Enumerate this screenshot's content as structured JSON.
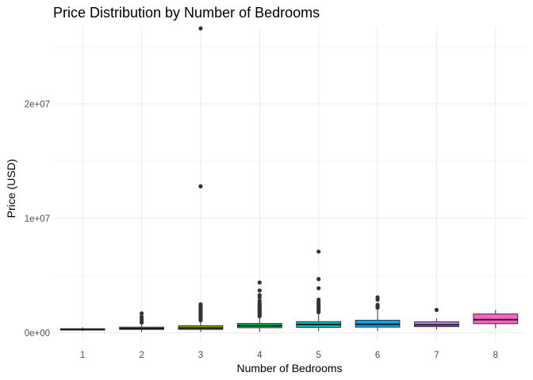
{
  "chart_data": {
    "type": "boxplot",
    "title": "Price Distribution by Number of Bedrooms",
    "xlabel": "Number of Bedrooms",
    "ylabel": "Price (USD)",
    "ylim": [
      -800000,
      26800000
    ],
    "y_ticks": [
      0,
      10000000,
      20000000
    ],
    "y_tick_labels": [
      "0e+00",
      "1e+07",
      "2e+07"
    ],
    "grid": true,
    "legend": "none",
    "categories": [
      "1",
      "2",
      "3",
      "4",
      "5",
      "6",
      "7",
      "8"
    ],
    "colors": {
      "1": "#F8766D",
      "2": "#CD9600",
      "3": "#7CAE00",
      "4": "#00BE67",
      "5": "#00BFC4",
      "6": "#00A9FF",
      "7": "#C77CFF",
      "8": "#FF61CC"
    },
    "boxes": [
      {
        "category": "1",
        "min": 150000,
        "q1": 250000,
        "median": 290000,
        "q3": 360000,
        "max": 470000,
        "outliers": []
      },
      {
        "category": "2",
        "min": 90000,
        "q1": 300000,
        "median": 380000,
        "q3": 500000,
        "max": 700000,
        "outliers": [
          900000,
          1000000,
          1200000,
          1400000,
          1700000
        ]
      },
      {
        "category": "3",
        "min": 80000,
        "q1": 300000,
        "median": 420000,
        "q3": 620000,
        "max": 1000000,
        "outliers": [
          1100000,
          1200000,
          1300000,
          1400000,
          1500000,
          1600000,
          1700000,
          1800000,
          1900000,
          2000000,
          2100000,
          2200000,
          2300000,
          2400000,
          2500000,
          12800000,
          26600000
        ]
      },
      {
        "category": "4",
        "min": 100000,
        "q1": 450000,
        "median": 620000,
        "q3": 820000,
        "max": 1350000,
        "outliers": [
          1450000,
          1550000,
          1650000,
          1750000,
          1850000,
          1950000,
          2050000,
          2150000,
          2250000,
          2350000,
          2450000,
          2600000,
          2800000,
          3100000,
          3300000,
          3700000,
          4400000
        ]
      },
      {
        "category": "5",
        "min": 150000,
        "q1": 480000,
        "median": 730000,
        "q3": 980000,
        "max": 1700000,
        "outliers": [
          1800000,
          1950000,
          2100000,
          2250000,
          2400000,
          2550000,
          2700000,
          2900000,
          3900000,
          4700000,
          7100000
        ]
      },
      {
        "category": "6",
        "min": 150000,
        "q1": 500000,
        "median": 750000,
        "q3": 1100000,
        "max": 2000000,
        "outliers": [
          2200000,
          2300000,
          2450000,
          2900000,
          3100000
        ]
      },
      {
        "category": "7",
        "min": 300000,
        "q1": 540000,
        "median": 700000,
        "q3": 960000,
        "max": 1250000,
        "outliers": [
          2000000
        ]
      },
      {
        "category": "8",
        "min": 400000,
        "q1": 800000,
        "median": 1150000,
        "q3": 1650000,
        "max": 2000000,
        "outliers": []
      }
    ]
  }
}
